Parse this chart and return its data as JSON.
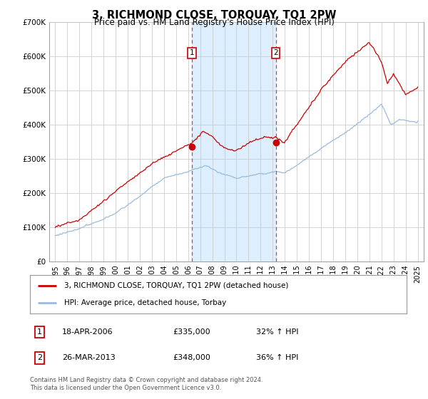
{
  "title": "3, RICHMOND CLOSE, TORQUAY, TQ1 2PW",
  "subtitle": "Price paid vs. HM Land Registry's House Price Index (HPI)",
  "legend_line1": "3, RICHMOND CLOSE, TORQUAY, TQ1 2PW (detached house)",
  "legend_line2": "HPI: Average price, detached house, Torbay",
  "transaction1_date": "18-APR-2006",
  "transaction1_price": "£335,000",
  "transaction1_hpi": "32% ↑ HPI",
  "transaction2_date": "26-MAR-2013",
  "transaction2_price": "£348,000",
  "transaction2_hpi": "36% ↑ HPI",
  "transaction1_x": 2006.3,
  "transaction2_x": 2013.25,
  "transaction1_y": 335000,
  "transaction2_y": 348000,
  "grid_color": "#cccccc",
  "hpi_line_color": "#99bbdd",
  "price_line_color": "#cc0000",
  "shade_color": "#ddeeff",
  "footer": "Contains HM Land Registry data © Crown copyright and database right 2024.\nThis data is licensed under the Open Government Licence v3.0.",
  "ylim": [
    0,
    700000
  ],
  "yticks": [
    0,
    100000,
    200000,
    300000,
    400000,
    500000,
    600000,
    700000
  ],
  "ytick_labels": [
    "£0",
    "£100K",
    "£200K",
    "£300K",
    "£400K",
    "£500K",
    "£600K",
    "£700K"
  ],
  "xlim": [
    1994.5,
    2025.5
  ],
  "xticks": [
    1995,
    1996,
    1997,
    1998,
    1999,
    2000,
    2001,
    2002,
    2003,
    2004,
    2005,
    2006,
    2007,
    2008,
    2009,
    2010,
    2011,
    2012,
    2013,
    2014,
    2015,
    2016,
    2017,
    2018,
    2019,
    2020,
    2021,
    2022,
    2023,
    2024,
    2025
  ]
}
